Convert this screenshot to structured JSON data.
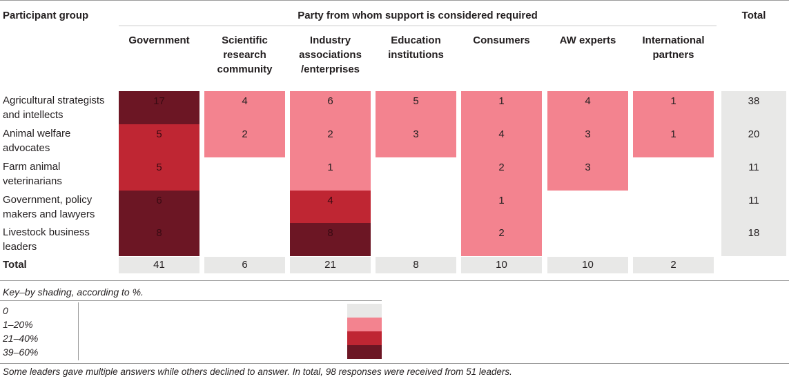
{
  "header": {
    "participant_group": "Participant group",
    "party": "Party from whom support is considered required",
    "total": "Total"
  },
  "columns": [
    [
      "Government"
    ],
    [
      "Scientific",
      "research",
      "community"
    ],
    [
      "Industry",
      "associations",
      "/enterprises"
    ],
    [
      "Education",
      "institutions"
    ],
    [
      "Consumers"
    ],
    [
      "AW experts"
    ],
    [
      "International",
      "partners"
    ]
  ],
  "rows": [
    {
      "label": [
        "Agricultural strategists",
        "and intellects"
      ],
      "values": [
        "17",
        "4",
        "6",
        "5",
        "1",
        "4",
        "1"
      ],
      "shade": [
        3,
        1,
        1,
        1,
        1,
        1,
        1
      ],
      "total": "38"
    },
    {
      "label": [
        "Animal welfare",
        "advocates"
      ],
      "values": [
        "5",
        "2",
        "2",
        "3",
        "4",
        "3",
        "1"
      ],
      "shade": [
        2,
        1,
        1,
        1,
        1,
        1,
        1
      ],
      "total": "20"
    },
    {
      "label": [
        "Farm animal",
        "veterinarians"
      ],
      "values": [
        "5",
        "",
        "1",
        "",
        "2",
        "3",
        ""
      ],
      "shade": [
        2,
        0,
        1,
        0,
        1,
        1,
        0
      ],
      "total": "11"
    },
    {
      "label": [
        "Government, policy",
        "makers and lawyers"
      ],
      "values": [
        "6",
        "",
        "4",
        "",
        "1",
        "",
        ""
      ],
      "shade": [
        3,
        0,
        2,
        0,
        1,
        0,
        0
      ],
      "total": "11"
    },
    {
      "label": [
        "Livestock business",
        "leaders"
      ],
      "values": [
        "8",
        "",
        "8",
        "",
        "2",
        "",
        ""
      ],
      "shade": [
        3,
        0,
        3,
        0,
        1,
        0,
        0
      ],
      "total": "18"
    }
  ],
  "totals": {
    "label": "Total",
    "values": [
      "41",
      "6",
      "21",
      "8",
      "10",
      "10",
      "2"
    ]
  },
  "key": {
    "title": "Key–by shading, according to %.",
    "items": [
      "0",
      "1–20%",
      "21–40%",
      "39–60%"
    ]
  },
  "footnote": "Some leaders gave multiple answers while others declined to answer. In total, 98 responses were received from 51 leaders.",
  "colors": {
    "none": "#e8e8e7",
    "low": "#f3838f",
    "mid": "#bf2633",
    "high": "#6c1624"
  }
}
